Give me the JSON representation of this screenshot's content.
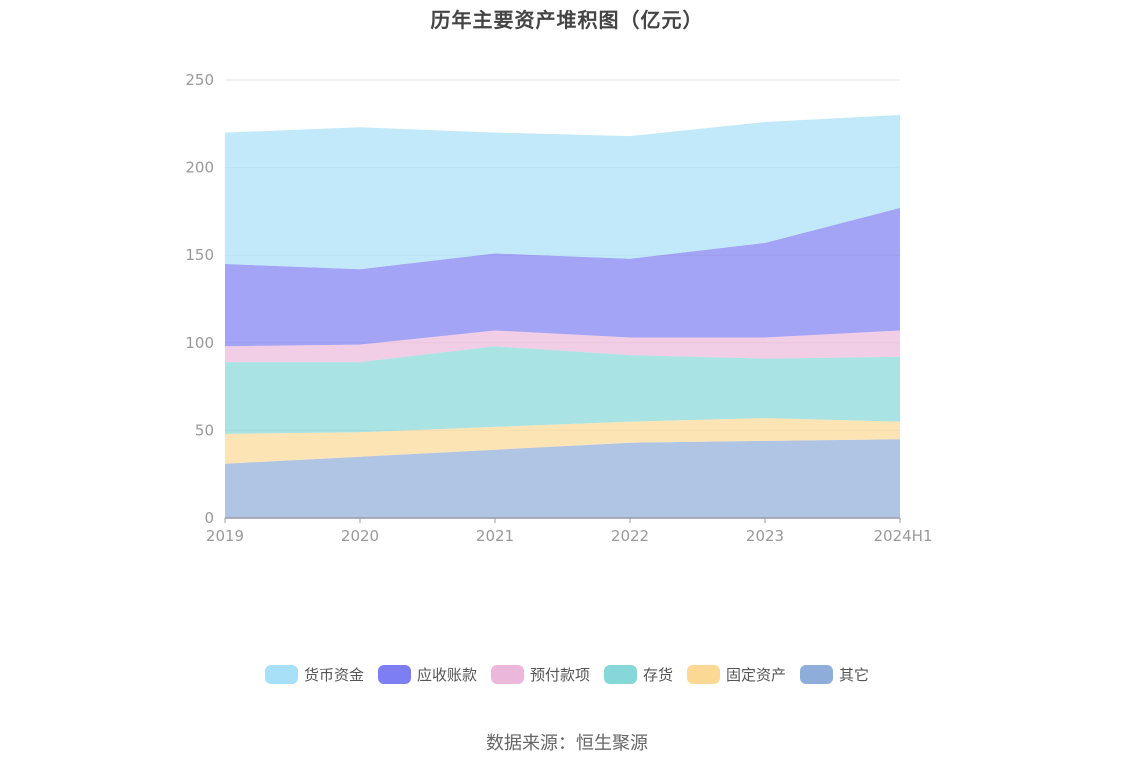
{
  "title": "历年主要资产堆积图（亿元）",
  "source": "数据来源：恒生聚源",
  "chart_data": {
    "type": "area",
    "stacked": true,
    "title": "历年主要资产堆积图（亿元）",
    "xlabel": "",
    "ylabel": "",
    "categories": [
      "2019",
      "2020",
      "2021",
      "2022",
      "2023",
      "2024H1"
    ],
    "ylim": [
      0,
      250
    ],
    "yticks": [
      0,
      50,
      100,
      150,
      200,
      250
    ],
    "grid": true,
    "legend_position": "bottom",
    "series": [
      {
        "name": "其它",
        "color": "#8fadd9",
        "values": [
          31,
          35,
          39,
          43,
          44,
          45
        ]
      },
      {
        "name": "固定资产",
        "color": "#fcd895",
        "values": [
          17,
          14,
          13,
          12,
          13,
          10
        ]
      },
      {
        "name": "存货",
        "color": "#86d7d7",
        "values": [
          41,
          40,
          46,
          38,
          34,
          37
        ]
      },
      {
        "name": "预付款项",
        "color": "#ebb8db",
        "values": [
          9,
          10,
          9,
          10,
          12,
          15
        ]
      },
      {
        "name": "应收账款",
        "color": "#7d7ef2",
        "values": [
          47,
          43,
          44,
          45,
          54,
          70
        ]
      },
      {
        "name": "货币资金",
        "color": "#a8e0f8",
        "values": [
          75,
          81,
          69,
          70,
          69,
          53
        ]
      }
    ]
  },
  "legend": [
    {
      "label": "货币资金",
      "color": "#a8e0f8"
    },
    {
      "label": "应收账款",
      "color": "#7d7ef2"
    },
    {
      "label": "预付款项",
      "color": "#ebb8db"
    },
    {
      "label": "存货",
      "color": "#86d7d7"
    },
    {
      "label": "固定资产",
      "color": "#fcd895"
    },
    {
      "label": "其它",
      "color": "#8fadd9"
    }
  ]
}
